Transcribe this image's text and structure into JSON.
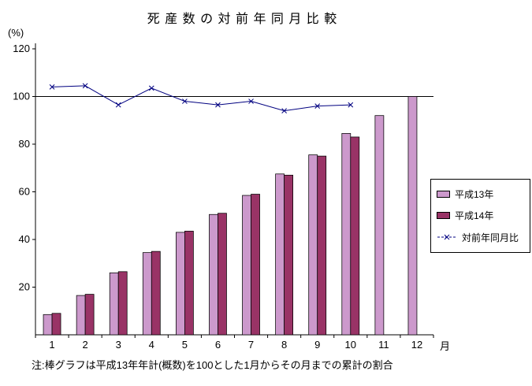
{
  "chart": {
    "title": "死 産 数 の 対 前 年 同 月 比 較",
    "y_unit": "(%)",
    "x_unit": "月",
    "note": "注:棒グラフは平成13年年計(概数)を100とした1月からその月までの累計の割合",
    "colors": {
      "series1": "#CC99CC",
      "series2": "#993366",
      "line": "#000080",
      "axis": "#000000"
    }
  },
  "chart_data": {
    "type": "bar",
    "title": "死産数の対前年同月比較",
    "categories": [
      "1",
      "2",
      "3",
      "4",
      "5",
      "6",
      "7",
      "8",
      "9",
      "10",
      "11",
      "12"
    ],
    "series": [
      {
        "name": "平成13年",
        "type": "bar",
        "values": [
          8.5,
          16.5,
          26,
          34.5,
          43,
          50.5,
          58.5,
          67.5,
          75.5,
          84.5,
          92,
          100
        ]
      },
      {
        "name": "平成14年",
        "type": "bar",
        "values": [
          9,
          17,
          26.5,
          35,
          43.5,
          51,
          59,
          67,
          75,
          83,
          null,
          null
        ]
      },
      {
        "name": "対前年同月比",
        "type": "line",
        "values": [
          104,
          104.5,
          96.5,
          103.5,
          98,
          96.5,
          98,
          94,
          96,
          96.5,
          null,
          null
        ]
      }
    ],
    "xlabel": "月",
    "ylabel": "(%)",
    "ylim": [
      0,
      120
    ],
    "yticks": [
      20,
      40,
      60,
      80,
      100,
      120
    ],
    "reference_line": 100,
    "grid": false,
    "legend_position": "right"
  }
}
